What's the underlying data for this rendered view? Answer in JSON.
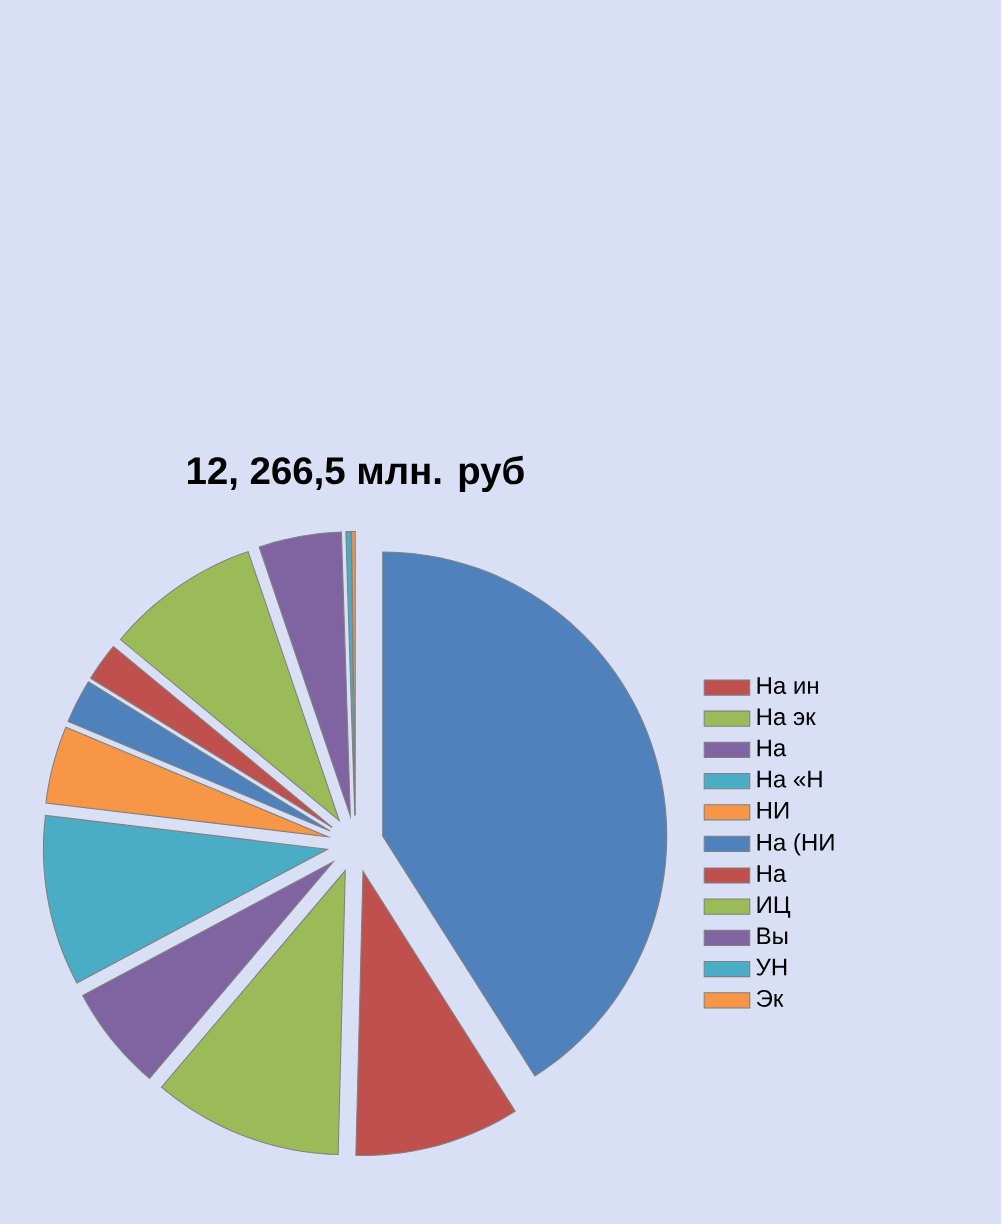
{
  "chart_data": {
    "type": "pie",
    "title": "12, 266,5 млн. руб",
    "categories": [
      null,
      "На ин",
      "На эк",
      "На",
      "На «Н",
      "НИ",
      "На (НИ",
      "На",
      "ИЦ",
      "Вы",
      "УН",
      "Эк"
    ],
    "values": [
      41,
      9.4,
      10.8,
      6,
      9.7,
      4.4,
      2.5,
      2.2,
      8.8,
      4.7,
      0.3,
      0.2
    ],
    "colors": [
      "#4f81bd",
      "#c0504d",
      "#9bbb59",
      "#8064a2",
      "#4bacc6",
      "#f79646",
      "#4f81bd",
      "#c0504d",
      "#9bbb59",
      "#8064a2",
      "#4bacc6",
      "#f79646"
    ],
    "legend": "right"
  }
}
